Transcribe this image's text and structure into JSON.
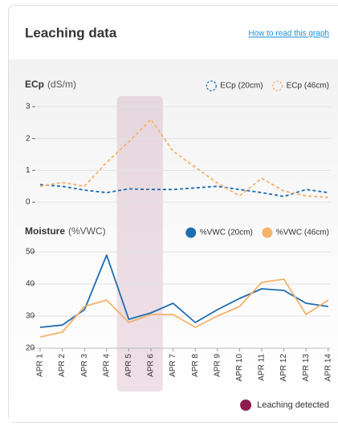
{
  "header": {
    "title": "Leaching data",
    "link": "How to read this graph"
  },
  "chart_data": [
    {
      "type": "line",
      "title": "ECp",
      "unit": "(dS/m)",
      "categories": [
        "APR 1",
        "APR 2",
        "APR 3",
        "APR 4",
        "APR 5",
        "APR 6",
        "APR 7",
        "APR 8",
        "APR 9",
        "APR 10",
        "APR 11",
        "APR 12",
        "APR 13",
        "APR 14"
      ],
      "series": [
        {
          "name": "ECp (20cm)",
          "color": "#1f6db0",
          "dashed": true,
          "values": [
            0.55,
            0.5,
            0.38,
            0.3,
            0.42,
            0.4,
            0.4,
            0.45,
            0.5,
            0.4,
            0.3,
            0.18,
            0.4,
            0.3
          ]
        },
        {
          "name": "ECp (46cm)",
          "color": "#f5b26c",
          "dashed": true,
          "values": [
            0.5,
            0.62,
            0.5,
            1.25,
            1.9,
            2.6,
            1.6,
            1.1,
            0.6,
            0.2,
            0.75,
            0.35,
            0.2,
            0.15
          ]
        }
      ],
      "ylim": [
        -0.2,
        3.3
      ],
      "yticks": [
        0,
        1,
        2,
        3
      ],
      "grid": true
    },
    {
      "type": "line",
      "title": "Moisture",
      "unit": "(%VWC)",
      "categories": [
        "APR 1",
        "APR 2",
        "APR 3",
        "APR 4",
        "APR 5",
        "APR 6",
        "APR 7",
        "APR 8",
        "APR 9",
        "APR 10",
        "APR 11",
        "APR 12",
        "APR 13",
        "APR 14"
      ],
      "series": [
        {
          "name": "%VWC (20cm)",
          "color": "#1f6db0",
          "dashed": false,
          "values": [
            26.5,
            27.2,
            32,
            49,
            29,
            31,
            34,
            28,
            32,
            35.5,
            38.5,
            38,
            34,
            33
          ]
        },
        {
          "name": "%VWC (46cm)",
          "color": "#f5b26c",
          "dashed": false,
          "values": [
            23.5,
            25,
            33,
            35,
            28,
            30.5,
            30.5,
            26.5,
            30,
            33,
            40.5,
            41.5,
            30.5,
            35
          ]
        }
      ],
      "ylim": [
        20,
        52
      ],
      "yticks": [
        20,
        30,
        40,
        50
      ],
      "grid": true
    }
  ],
  "highlight": {
    "label": "Leaching detected",
    "color": "#8e1b4e",
    "from": "APR 5",
    "to": "APR 6"
  }
}
